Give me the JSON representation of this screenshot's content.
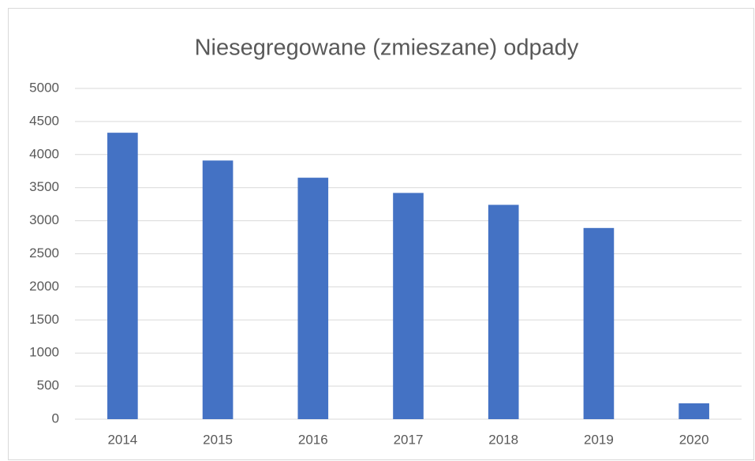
{
  "chart_data": {
    "type": "bar",
    "title": "Niesegregowane (zmieszane) odpady",
    "categories": [
      "2014",
      "2015",
      "2016",
      "2017",
      "2018",
      "2019",
      "2020"
    ],
    "values": [
      4330,
      3910,
      3650,
      3420,
      3240,
      2890,
      240
    ],
    "color": "#4472c4",
    "ylim": [
      0,
      5000
    ],
    "yticks": [
      0,
      500,
      1000,
      1500,
      2000,
      2500,
      3000,
      3500,
      4000,
      4500,
      5000
    ],
    "grid": true
  }
}
